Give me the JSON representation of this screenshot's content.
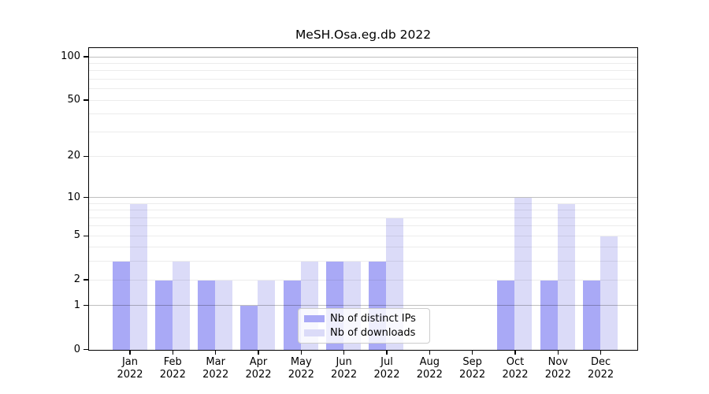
{
  "chart_data": {
    "type": "bar",
    "title": "MeSH.Osa.eg.db 2022",
    "year_label": "2022",
    "categories": [
      "Jan",
      "Feb",
      "Mar",
      "Apr",
      "May",
      "Jun",
      "Jul",
      "Aug",
      "Sep",
      "Oct",
      "Nov",
      "Dec"
    ],
    "series": [
      {
        "name": "Nb of distinct IPs",
        "color": "#a9a9f6",
        "values": [
          3,
          2,
          2,
          1,
          2,
          3,
          3,
          0,
          0,
          2,
          2,
          2
        ]
      },
      {
        "name": "Nb of downloads",
        "color": "#dbdbf8",
        "values": [
          9,
          3,
          2,
          2,
          3,
          3,
          7,
          0,
          0,
          10,
          9,
          5
        ]
      }
    ],
    "y_scale": "log10(1+x)",
    "y_ticks": [
      0,
      1,
      2,
      5,
      10,
      20,
      50,
      100
    ],
    "y_minor_gridlines": [
      2,
      3,
      4,
      5,
      6,
      7,
      8,
      9,
      20,
      30,
      40,
      50,
      60,
      70,
      80,
      90
    ],
    "y_major_gridlines": [
      1,
      10,
      100
    ],
    "y_max": 114,
    "grid": "horizontal",
    "legend_position": "lower-center",
    "xlabel": "",
    "ylabel": ""
  },
  "colors": {
    "major_gridline": "#bfbfbf",
    "minor_gridline": "#ececec",
    "axis": "#000000",
    "legend_border": "#cccccc"
  }
}
